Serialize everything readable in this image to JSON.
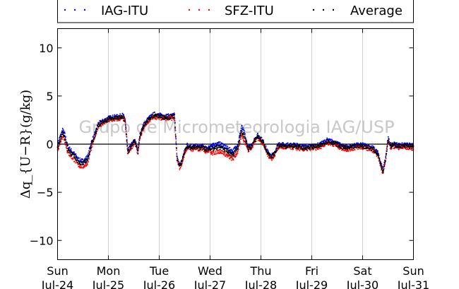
{
  "chart_data": {
    "type": "scatter",
    "title": "",
    "ylabel": "Δq_{U−R}(g/kg)",
    "xlabel": "",
    "ylim": [
      -12,
      12
    ],
    "yticks": [
      -10,
      -5,
      0,
      5,
      10
    ],
    "xlim": [
      0,
      7
    ],
    "xticks": [
      {
        "x": 0,
        "day": "Sun",
        "date": "Jul-24"
      },
      {
        "x": 1,
        "day": "Mon",
        "date": "Jul-25"
      },
      {
        "x": 2,
        "day": "Tue",
        "date": "Jul-26"
      },
      {
        "x": 3,
        "day": "Wed",
        "date": "Jul-27"
      },
      {
        "x": 4,
        "day": "Thu",
        "date": "Jul-28"
      },
      {
        "x": 5,
        "day": "Fri",
        "date": "Jul-29"
      },
      {
        "x": 6,
        "day": "Sat",
        "date": "Jul-30"
      },
      {
        "x": 7,
        "day": "Sun",
        "date": "Jul-31"
      }
    ],
    "grid": "vertical",
    "legend_position": "top",
    "watermark": "Grupo de Micrometeorologia IAG/USP",
    "series": [
      {
        "name": "IAG-ITU",
        "color": "#0000ff"
      },
      {
        "name": "SFZ-ITU",
        "color": "#ff0000"
      },
      {
        "name": "Average",
        "color": "#000000"
      }
    ],
    "average_profile": {
      "x": [
        0.0,
        0.05,
        0.1,
        0.14,
        0.2,
        0.28,
        0.35,
        0.42,
        0.5,
        0.55,
        0.6,
        0.65,
        0.72,
        0.8,
        0.9,
        1.0,
        1.1,
        1.2,
        1.28,
        1.33,
        1.38,
        1.45,
        1.52,
        1.58,
        1.62,
        1.7,
        1.8,
        1.9,
        2.0,
        2.1,
        2.2,
        2.3,
        2.35,
        2.4,
        2.45,
        2.5,
        2.55,
        2.6,
        2.65,
        2.7,
        2.78,
        2.85,
        2.92,
        3.0,
        3.06,
        3.15,
        3.25,
        3.35,
        3.45,
        3.55,
        3.62,
        3.7,
        3.75,
        3.8,
        3.87,
        3.93,
        4.0,
        4.06,
        4.12,
        4.2,
        4.27,
        4.32,
        4.37,
        4.45,
        4.55,
        4.65,
        4.75,
        4.85,
        5.0,
        5.15,
        5.3,
        5.45,
        5.55,
        5.6,
        5.7,
        5.8,
        5.9,
        6.0,
        6.1,
        6.2,
        6.3,
        6.35,
        6.4,
        6.45,
        6.5,
        6.55,
        6.6,
        6.65,
        6.7,
        6.8,
        6.9,
        7.0
      ],
      "y": [
        -0.3,
        0.5,
        1.2,
        0.8,
        -0.5,
        -1.0,
        -1.4,
        -1.9,
        -2.0,
        -1.8,
        -1.5,
        -0.3,
        0.7,
        2.0,
        2.3,
        2.6,
        2.7,
        2.75,
        2.9,
        2.5,
        -0.8,
        -0.2,
        0.3,
        -0.8,
        0.8,
        2.0,
        2.6,
        3.0,
        2.9,
        2.8,
        2.8,
        2.9,
        -1.5,
        -2.3,
        -1.8,
        -0.8,
        -0.2,
        -0.3,
        -0.4,
        -0.3,
        -0.4,
        -0.3,
        -0.6,
        -0.4,
        -0.5,
        -0.3,
        -0.4,
        -0.8,
        -1.1,
        -0.3,
        1.5,
        0.4,
        -0.5,
        -0.3,
        0.3,
        0.8,
        0.5,
        0.0,
        -0.8,
        -1.4,
        -1.0,
        -0.3,
        -0.1,
        -0.2,
        -0.2,
        -0.2,
        -0.3,
        -0.4,
        -0.3,
        -0.2,
        0.3,
        0.1,
        -0.2,
        -0.3,
        -0.4,
        -0.3,
        -0.2,
        -0.2,
        -0.3,
        -0.5,
        -1.0,
        -2.0,
        -2.8,
        -1.6,
        0.5,
        -0.2,
        -0.1,
        -0.1,
        -0.2,
        -0.2,
        -0.2,
        -0.3
      ]
    }
  }
}
